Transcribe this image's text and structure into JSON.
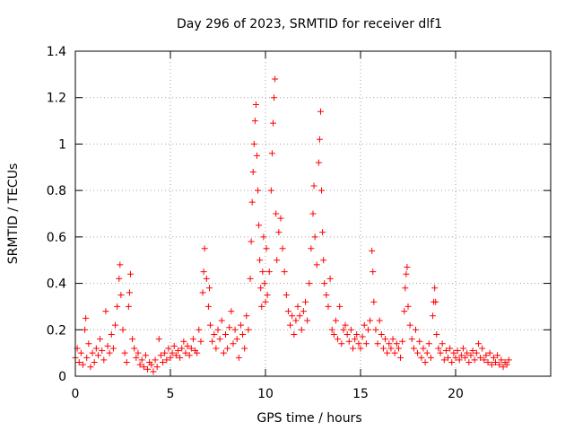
{
  "chart_data": {
    "type": "scatter",
    "title": "Day 296 of 2023, SRMTID for receiver dlf1",
    "xlabel": "GPS time / hours",
    "ylabel": "SRMTID / TECUs",
    "xlim": [
      0,
      25
    ],
    "ylim": [
      0,
      1.4
    ],
    "xticks": [
      0,
      5,
      10,
      15,
      20
    ],
    "yticks": [
      0,
      0.2,
      0.4,
      0.6,
      0.8,
      1,
      1.2,
      1.4
    ],
    "xtick_labels": [
      "0",
      "5",
      "10",
      "15",
      "20"
    ],
    "ytick_labels": [
      "0",
      "0.2",
      "0.4",
      "0.6",
      "0.8",
      "1",
      "1.2",
      "1.4"
    ],
    "grid": true,
    "marker": "+",
    "series": [
      {
        "name": "SRMTID",
        "color": "#ff0000",
        "points": [
          [
            0.0,
            0.08
          ],
          [
            0.1,
            0.12
          ],
          [
            0.2,
            0.06
          ],
          [
            0.3,
            0.1
          ],
          [
            0.4,
            0.05
          ],
          [
            0.5,
            0.2
          ],
          [
            0.55,
            0.25
          ],
          [
            0.6,
            0.08
          ],
          [
            0.7,
            0.14
          ],
          [
            0.8,
            0.04
          ],
          [
            0.9,
            0.1
          ],
          [
            1.0,
            0.06
          ],
          [
            1.1,
            0.12
          ],
          [
            1.2,
            0.09
          ],
          [
            1.3,
            0.16
          ],
          [
            1.4,
            0.11
          ],
          [
            1.5,
            0.07
          ],
          [
            1.6,
            0.28
          ],
          [
            1.7,
            0.13
          ],
          [
            1.8,
            0.1
          ],
          [
            1.9,
            0.18
          ],
          [
            2.0,
            0.12
          ],
          [
            2.1,
            0.22
          ],
          [
            2.2,
            0.3
          ],
          [
            2.3,
            0.42
          ],
          [
            2.35,
            0.48
          ],
          [
            2.4,
            0.35
          ],
          [
            2.5,
            0.2
          ],
          [
            2.6,
            0.1
          ],
          [
            2.7,
            0.06
          ],
          [
            2.8,
            0.3
          ],
          [
            2.85,
            0.36
          ],
          [
            2.9,
            0.44
          ],
          [
            3.0,
            0.16
          ],
          [
            3.1,
            0.12
          ],
          [
            3.2,
            0.08
          ],
          [
            3.3,
            0.1
          ],
          [
            3.4,
            0.05
          ],
          [
            3.5,
            0.07
          ],
          [
            3.6,
            0.04
          ],
          [
            3.7,
            0.09
          ],
          [
            3.8,
            0.03
          ],
          [
            3.9,
            0.06
          ],
          [
            4.0,
            0.05
          ],
          [
            4.1,
            0.02
          ],
          [
            4.2,
            0.07
          ],
          [
            4.3,
            0.04
          ],
          [
            4.4,
            0.16
          ],
          [
            4.5,
            0.09
          ],
          [
            4.6,
            0.06
          ],
          [
            4.7,
            0.1
          ],
          [
            4.8,
            0.07
          ],
          [
            4.9,
            0.12
          ],
          [
            5.0,
            0.08
          ],
          [
            5.1,
            0.1
          ],
          [
            5.2,
            0.13
          ],
          [
            5.3,
            0.09
          ],
          [
            5.4,
            0.11
          ],
          [
            5.5,
            0.08
          ],
          [
            5.6,
            0.12
          ],
          [
            5.7,
            0.15
          ],
          [
            5.8,
            0.1
          ],
          [
            5.9,
            0.13
          ],
          [
            6.0,
            0.09
          ],
          [
            6.1,
            0.12
          ],
          [
            6.2,
            0.16
          ],
          [
            6.3,
            0.11
          ],
          [
            6.4,
            0.1
          ],
          [
            6.5,
            0.2
          ],
          [
            6.6,
            0.15
          ],
          [
            6.7,
            0.36
          ],
          [
            6.75,
            0.45
          ],
          [
            6.8,
            0.55
          ],
          [
            6.9,
            0.42
          ],
          [
            7.0,
            0.3
          ],
          [
            7.05,
            0.38
          ],
          [
            7.1,
            0.22
          ],
          [
            7.2,
            0.15
          ],
          [
            7.3,
            0.18
          ],
          [
            7.4,
            0.12
          ],
          [
            7.5,
            0.2
          ],
          [
            7.6,
            0.16
          ],
          [
            7.7,
            0.24
          ],
          [
            7.8,
            0.1
          ],
          [
            7.9,
            0.18
          ],
          [
            8.0,
            0.12
          ],
          [
            8.1,
            0.21
          ],
          [
            8.2,
            0.28
          ],
          [
            8.3,
            0.14
          ],
          [
            8.4,
            0.2
          ],
          [
            8.5,
            0.16
          ],
          [
            8.6,
            0.08
          ],
          [
            8.7,
            0.22
          ],
          [
            8.8,
            0.18
          ],
          [
            8.9,
            0.12
          ],
          [
            9.0,
            0.26
          ],
          [
            9.1,
            0.2
          ],
          [
            9.2,
            0.42
          ],
          [
            9.25,
            0.58
          ],
          [
            9.3,
            0.75
          ],
          [
            9.35,
            0.88
          ],
          [
            9.4,
            1.0
          ],
          [
            9.45,
            1.1
          ],
          [
            9.5,
            1.17
          ],
          [
            9.55,
            0.95
          ],
          [
            9.6,
            0.8
          ],
          [
            9.65,
            0.65
          ],
          [
            9.7,
            0.5
          ],
          [
            9.75,
            0.38
          ],
          [
            9.8,
            0.3
          ],
          [
            9.85,
            0.45
          ],
          [
            9.9,
            0.6
          ],
          [
            9.95,
            0.4
          ],
          [
            10.0,
            0.32
          ],
          [
            10.05,
            0.55
          ],
          [
            10.1,
            0.35
          ],
          [
            10.2,
            0.45
          ],
          [
            10.3,
            0.8
          ],
          [
            10.35,
            0.96
          ],
          [
            10.4,
            1.09
          ],
          [
            10.45,
            1.2
          ],
          [
            10.5,
            1.28
          ],
          [
            10.55,
            0.7
          ],
          [
            10.6,
            0.5
          ],
          [
            10.7,
            0.62
          ],
          [
            10.8,
            0.68
          ],
          [
            10.9,
            0.55
          ],
          [
            11.0,
            0.45
          ],
          [
            11.1,
            0.35
          ],
          [
            11.2,
            0.28
          ],
          [
            11.3,
            0.22
          ],
          [
            11.4,
            0.26
          ],
          [
            11.5,
            0.18
          ],
          [
            11.6,
            0.24
          ],
          [
            11.7,
            0.3
          ],
          [
            11.8,
            0.26
          ],
          [
            11.9,
            0.2
          ],
          [
            12.0,
            0.28
          ],
          [
            12.1,
            0.32
          ],
          [
            12.2,
            0.24
          ],
          [
            12.3,
            0.4
          ],
          [
            12.4,
            0.55
          ],
          [
            12.5,
            0.7
          ],
          [
            12.55,
            0.82
          ],
          [
            12.6,
            0.6
          ],
          [
            12.7,
            0.48
          ],
          [
            12.8,
            0.92
          ],
          [
            12.85,
            1.02
          ],
          [
            12.9,
            1.14
          ],
          [
            12.95,
            0.8
          ],
          [
            13.0,
            0.62
          ],
          [
            13.05,
            0.5
          ],
          [
            13.1,
            0.4
          ],
          [
            13.2,
            0.35
          ],
          [
            13.3,
            0.3
          ],
          [
            13.4,
            0.42
          ],
          [
            13.5,
            0.2
          ],
          [
            13.6,
            0.18
          ],
          [
            13.7,
            0.24
          ],
          [
            13.8,
            0.16
          ],
          [
            13.9,
            0.3
          ],
          [
            14.0,
            0.14
          ],
          [
            14.1,
            0.2
          ],
          [
            14.2,
            0.22
          ],
          [
            14.3,
            0.18
          ],
          [
            14.4,
            0.15
          ],
          [
            14.5,
            0.2
          ],
          [
            14.6,
            0.12
          ],
          [
            14.7,
            0.16
          ],
          [
            14.8,
            0.18
          ],
          [
            14.9,
            0.14
          ],
          [
            15.0,
            0.12
          ],
          [
            15.1,
            0.17
          ],
          [
            15.2,
            0.22
          ],
          [
            15.3,
            0.14
          ],
          [
            15.4,
            0.2
          ],
          [
            15.5,
            0.24
          ],
          [
            15.6,
            0.54
          ],
          [
            15.65,
            0.45
          ],
          [
            15.7,
            0.32
          ],
          [
            15.8,
            0.2
          ],
          [
            15.9,
            0.14
          ],
          [
            16.0,
            0.24
          ],
          [
            16.1,
            0.18
          ],
          [
            16.2,
            0.12
          ],
          [
            16.3,
            0.16
          ],
          [
            16.4,
            0.1
          ],
          [
            16.5,
            0.14
          ],
          [
            16.6,
            0.12
          ],
          [
            16.7,
            0.16
          ],
          [
            16.8,
            0.1
          ],
          [
            16.9,
            0.14
          ],
          [
            17.0,
            0.12
          ],
          [
            17.1,
            0.08
          ],
          [
            17.2,
            0.15
          ],
          [
            17.3,
            0.28
          ],
          [
            17.35,
            0.38
          ],
          [
            17.4,
            0.44
          ],
          [
            17.45,
            0.47
          ],
          [
            17.5,
            0.3
          ],
          [
            17.6,
            0.22
          ],
          [
            17.7,
            0.16
          ],
          [
            17.8,
            0.12
          ],
          [
            17.9,
            0.2
          ],
          [
            18.0,
            0.1
          ],
          [
            18.1,
            0.15
          ],
          [
            18.2,
            0.08
          ],
          [
            18.3,
            0.12
          ],
          [
            18.4,
            0.06
          ],
          [
            18.5,
            0.1
          ],
          [
            18.6,
            0.14
          ],
          [
            18.7,
            0.08
          ],
          [
            18.8,
            0.26
          ],
          [
            18.85,
            0.32
          ],
          [
            18.9,
            0.38
          ],
          [
            18.95,
            0.32
          ],
          [
            19.0,
            0.18
          ],
          [
            19.1,
            0.12
          ],
          [
            19.2,
            0.1
          ],
          [
            19.3,
            0.14
          ],
          [
            19.4,
            0.07
          ],
          [
            19.5,
            0.11
          ],
          [
            19.6,
            0.08
          ],
          [
            19.7,
            0.12
          ],
          [
            19.8,
            0.06
          ],
          [
            19.9,
            0.1
          ],
          [
            20.0,
            0.08
          ],
          [
            20.1,
            0.11
          ],
          [
            20.2,
            0.07
          ],
          [
            20.3,
            0.09
          ],
          [
            20.4,
            0.12
          ],
          [
            20.5,
            0.08
          ],
          [
            20.6,
            0.1
          ],
          [
            20.7,
            0.06
          ],
          [
            20.8,
            0.09
          ],
          [
            20.9,
            0.11
          ],
          [
            21.0,
            0.07
          ],
          [
            21.1,
            0.1
          ],
          [
            21.2,
            0.14
          ],
          [
            21.3,
            0.08
          ],
          [
            21.4,
            0.12
          ],
          [
            21.5,
            0.07
          ],
          [
            21.6,
            0.09
          ],
          [
            21.7,
            0.06
          ],
          [
            21.8,
            0.1
          ],
          [
            21.9,
            0.05
          ],
          [
            22.0,
            0.08
          ],
          [
            22.1,
            0.06
          ],
          [
            22.2,
            0.09
          ],
          [
            22.3,
            0.05
          ],
          [
            22.4,
            0.07
          ],
          [
            22.5,
            0.04
          ],
          [
            22.6,
            0.06
          ],
          [
            22.7,
            0.05
          ],
          [
            22.8,
            0.07
          ]
        ]
      }
    ]
  }
}
